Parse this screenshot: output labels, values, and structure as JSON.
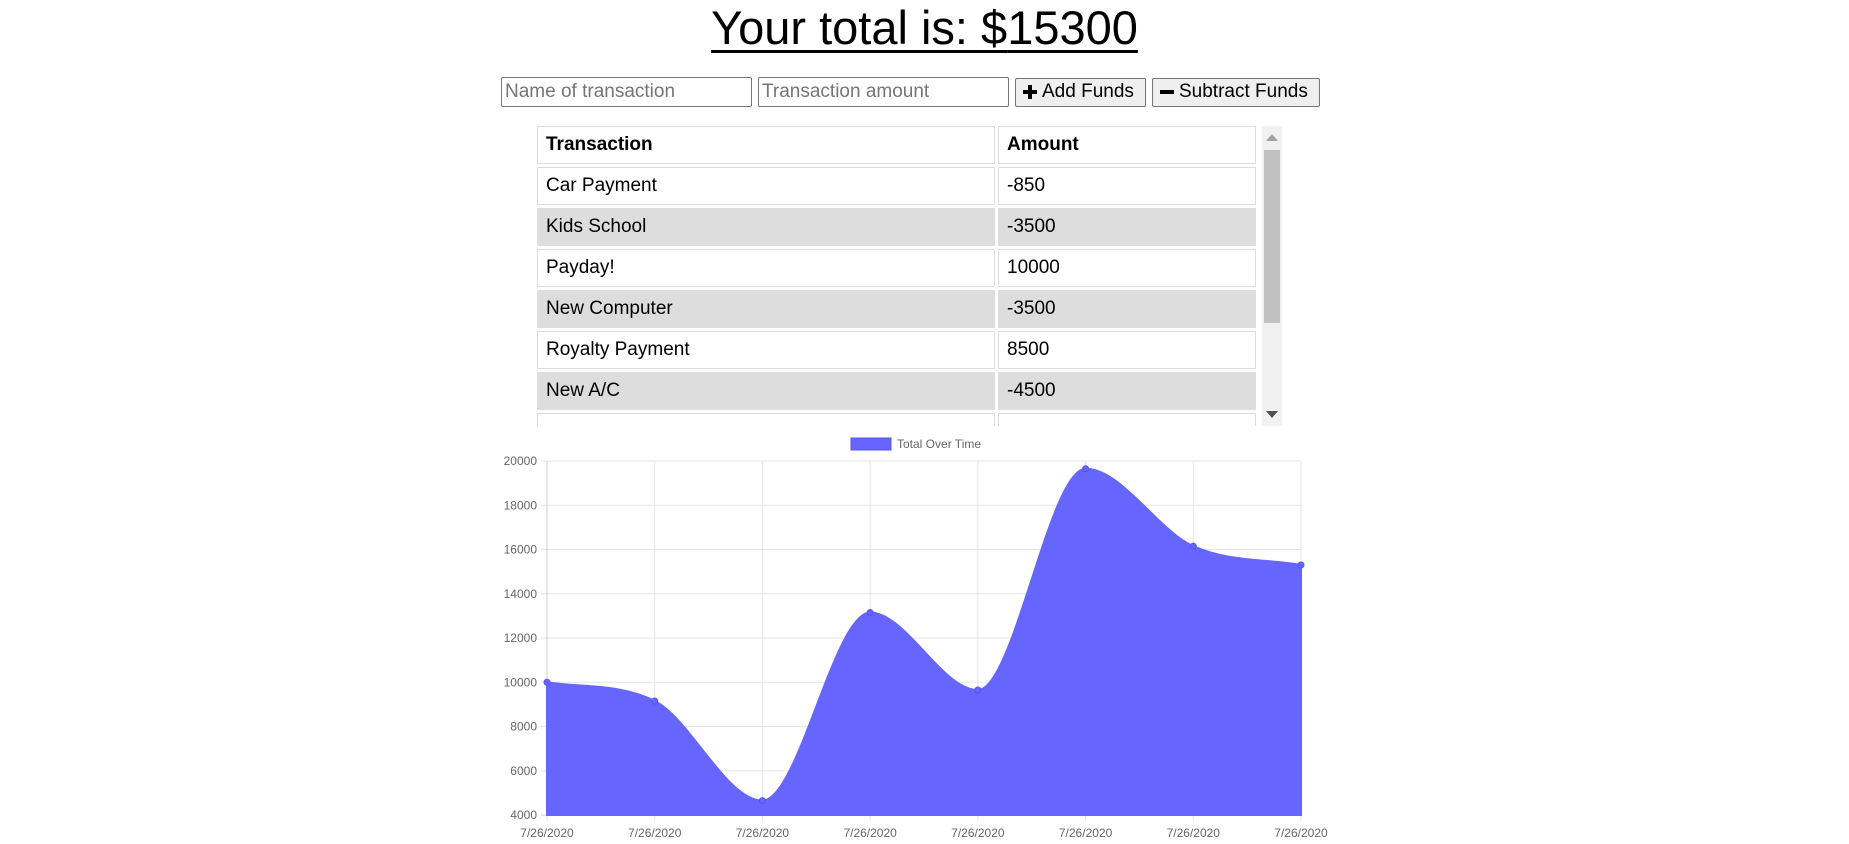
{
  "header": {
    "total_prefix": "Your total is: $",
    "total_value": "15300"
  },
  "form": {
    "name_placeholder": "Name of transaction",
    "amount_placeholder": "Transaction amount",
    "add_label": "Add Funds",
    "add_icon": "plus-icon",
    "subtract_label": "Subtract Funds",
    "subtract_icon": "minus-icon"
  },
  "table": {
    "headers": [
      "Transaction",
      "Amount"
    ],
    "rows": [
      {
        "name": "Car Payment",
        "amount": "-850"
      },
      {
        "name": "Kids School",
        "amount": "-3500"
      },
      {
        "name": "Payday!",
        "amount": "10000"
      },
      {
        "name": "New Computer",
        "amount": "-3500"
      },
      {
        "name": "Royalty Payment",
        "amount": "8500"
      },
      {
        "name": "New A/C",
        "amount": "-4500"
      }
    ]
  },
  "chart_data": {
    "type": "area",
    "title": "",
    "xlabel": "",
    "ylabel": "",
    "legend_placement": "top-center",
    "grid": true,
    "color": "#6666ff",
    "categories": [
      "7/26/2020",
      "7/26/2020",
      "7/26/2020",
      "7/26/2020",
      "7/26/2020",
      "7/26/2020",
      "7/26/2020",
      "7/26/2020"
    ],
    "series": [
      {
        "name": "Total Over Time",
        "values": [
          10000,
          9150,
          4650,
          13150,
          9650,
          19650,
          16150,
          15300
        ]
      }
    ],
    "ylim": [
      4000,
      20000
    ],
    "yticks": [
      4000,
      6000,
      8000,
      10000,
      12000,
      14000,
      16000,
      18000,
      20000
    ]
  }
}
